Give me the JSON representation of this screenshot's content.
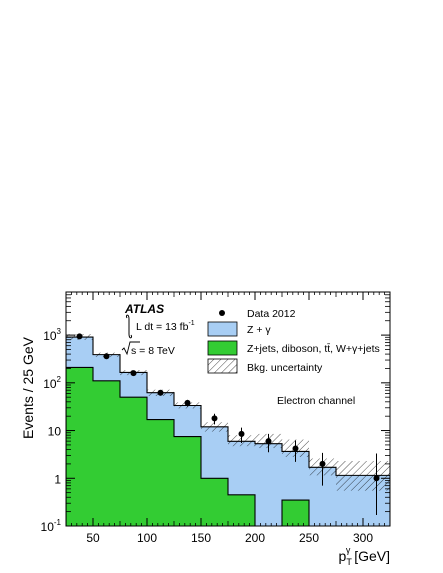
{
  "chart_data": {
    "type": "bar",
    "title": "",
    "xlabel": "p_T^γ [GeV]",
    "xlabel_main": "p",
    "xlabel_sub": "T",
    "xlabel_sup": "γ",
    "xlabel_unit": " [GeV]",
    "ylabel": "Events / 25 GeV",
    "xlim": [
      25,
      325
    ],
    "ylim": [
      0.1,
      8000
    ],
    "yscale": "log",
    "x_ticks": [
      50,
      100,
      150,
      200,
      250,
      300
    ],
    "x_tick_labels": [
      "50",
      "100",
      "150",
      "200",
      "250",
      "300"
    ],
    "y_ticks": [
      0.1,
      1,
      10,
      100,
      1000
    ],
    "y_tick_base": "10",
    "y_tick_exps": [
      "-1",
      "",
      "",
      "2",
      "3"
    ],
    "y_tick_plain": [
      "",
      "1",
      "10",
      "",
      ""
    ],
    "bin_edges": [
      25,
      50,
      75,
      100,
      125,
      150,
      175,
      200,
      225,
      250,
      275,
      325
    ],
    "series": [
      {
        "name": "Z+jets, diboson, tt̄, W+γ+jets",
        "color": "#33cc33",
        "values": [
          210,
          110,
          50,
          17,
          7.5,
          1.0,
          0.45,
          0.1,
          0.35,
          0.1,
          0.1
        ]
      },
      {
        "name": "Z + γ",
        "color": "#a8cef4",
        "values": [
          700,
          280,
          115,
          45,
          26,
          11.0,
          5.5,
          5.2,
          3.3,
          1.6,
          1.05
        ]
      }
    ],
    "total": [
      910,
      390,
      165,
      62,
      33.5,
      12.0,
      5.95,
      5.3,
      3.65,
      1.7,
      1.15
    ],
    "band_up": [
      1050,
      430,
      185,
      72,
      39,
      15,
      8,
      8.5,
      6.5,
      2.6,
      2.3
    ],
    "band_down": [
      790,
      350,
      145,
      53,
      29,
      9.5,
      4.7,
      4.3,
      2.8,
      1.15,
      0.55
    ],
    "data": {
      "name": "Data 2012",
      "x": [
        37.5,
        62.5,
        87.5,
        112.5,
        137.5,
        162.5,
        187.5,
        212.5,
        237.5,
        262.5,
        312.5
      ],
      "y": [
        940,
        360,
        160,
        62,
        38,
        18,
        8.5,
        6.0,
        4.2,
        2.0,
        1.0
      ],
      "err_low": [
        30,
        19,
        13,
        8,
        6,
        4.5,
        3.0,
        2.5,
        2.0,
        1.3,
        0.83
      ],
      "err_high": [
        30,
        19,
        13,
        8,
        6,
        4.5,
        3.0,
        2.5,
        2.0,
        1.4,
        2.3
      ]
    },
    "legend_placement": "top-right",
    "legend": [
      {
        "label": "Data 2012",
        "style": "marker"
      },
      {
        "label": "Z + γ",
        "style": "fill",
        "color": "#a8cef4"
      },
      {
        "label": "Z+jets, diboson, tt̄, W+γ+jets",
        "style": "fill",
        "color": "#33cc33"
      },
      {
        "label": "Bkg. uncertainty",
        "style": "hatch"
      }
    ],
    "annotations": {
      "experiment": "ATLAS",
      "lumi_text": "L dt = 13 fb",
      "lumi_sup": "-1",
      "energy_text": "s = 8 TeV",
      "channel": "Electron channel"
    },
    "grid": false
  }
}
